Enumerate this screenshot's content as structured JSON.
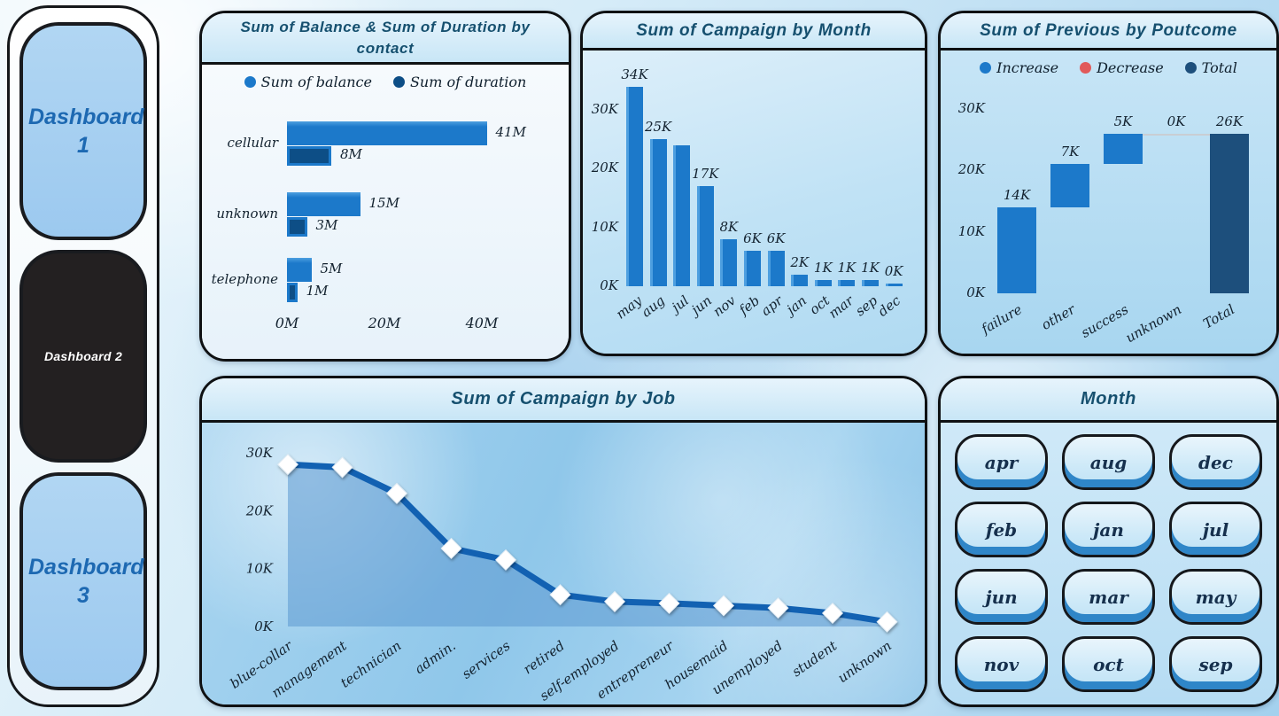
{
  "sidebar": {
    "items": [
      {
        "id": "dashboard-1",
        "label": "Dashboard 1",
        "style": "light"
      },
      {
        "id": "dashboard-2",
        "label": "Dashboard 2",
        "style": "dark"
      },
      {
        "id": "dashboard-3",
        "label": "Dashboard 3",
        "style": "light"
      }
    ]
  },
  "slicer": {
    "title": "Month",
    "options": [
      "apr",
      "aug",
      "dec",
      "feb",
      "jan",
      "jul",
      "jun",
      "mar",
      "may",
      "nov",
      "oct",
      "sep"
    ]
  },
  "theme": {
    "bar_blue": "#1c79ca",
    "bar_blue_highlight": "#4d9fe0",
    "bar_dark_blue": "#0d4e86",
    "total_navy": "#1d4f7c",
    "decrease_red": "#e15a5a",
    "line_blue": "#1261b2",
    "area_fill": "#5e9bd3",
    "title_color": "#16506f"
  },
  "chart_data": [
    {
      "id": "contact",
      "type": "bar",
      "orientation": "horizontal",
      "title": "Sum of Balance & Sum of Duration by contact",
      "categories": [
        "cellular",
        "unknown",
        "telephone"
      ],
      "series": [
        {
          "name": "Sum of balance",
          "color": "#1c79ca",
          "values": [
            41,
            15,
            5
          ],
          "labels": [
            "41M",
            "15M",
            "5M"
          ]
        },
        {
          "name": "Sum of duration",
          "color": "#0d4e86",
          "values": [
            8,
            3,
            1
          ],
          "labels": [
            "8M",
            "3M",
            "1M"
          ]
        }
      ],
      "xticks": [
        "0M",
        "20M",
        "40M"
      ],
      "xlim": [
        0,
        44
      ],
      "unit": "M",
      "legend_position": "top"
    },
    {
      "id": "campaign_month",
      "type": "bar",
      "title": "Sum of Campaign by Month",
      "categories": [
        "may",
        "aug",
        "jul",
        "jun",
        "nov",
        "feb",
        "apr",
        "jan",
        "oct",
        "mar",
        "sep",
        "dec"
      ],
      "values": [
        34,
        25,
        24,
        17,
        8,
        6,
        6,
        2,
        1,
        1,
        1,
        0.3
      ],
      "labels": [
        "34K",
        "25K",
        "",
        "17K",
        "8K",
        "6K",
        "6K",
        "2K",
        "1K",
        "1K",
        "1K",
        "0K"
      ],
      "yticks": [
        "0K",
        "10K",
        "20K",
        "30K"
      ],
      "ylim": [
        0,
        35
      ],
      "grid": false
    },
    {
      "id": "poutcome_waterfall",
      "type": "waterfall",
      "title": "Sum of Previous by Poutcome",
      "legend": [
        {
          "label": "Increase",
          "color": "#1c79ca"
        },
        {
          "label": "Decrease",
          "color": "#e15a5a"
        },
        {
          "label": "Total",
          "color": "#1d4f7c"
        }
      ],
      "categories": [
        "failure",
        "other",
        "success",
        "unknown",
        "Total"
      ],
      "steps": [
        {
          "category": "failure",
          "start": 0,
          "end": 14,
          "label": "14K",
          "kind": "increase"
        },
        {
          "category": "other",
          "start": 14,
          "end": 21,
          "label": "7K",
          "kind": "increase"
        },
        {
          "category": "success",
          "start": 21,
          "end": 26,
          "label": "5K",
          "kind": "increase"
        },
        {
          "category": "unknown",
          "start": 26,
          "end": 26,
          "label": "0K",
          "kind": "increase"
        },
        {
          "category": "Total",
          "start": 0,
          "end": 26,
          "label": "26K",
          "kind": "total"
        }
      ],
      "yticks": [
        "0K",
        "10K",
        "20K",
        "30K"
      ],
      "ylim": [
        0,
        30
      ],
      "legend_position": "top"
    },
    {
      "id": "campaign_job",
      "type": "area",
      "title": "Sum of Campaign by Job",
      "categories": [
        "blue-collar",
        "management",
        "technician",
        "admin.",
        "services",
        "retired",
        "self-employed",
        "entrepreneur",
        "housemaid",
        "unemployed",
        "student",
        "unknown"
      ],
      "values": [
        28,
        27.5,
        23,
        13.5,
        11.5,
        5.5,
        4.3,
        4,
        3.6,
        3.2,
        2.3,
        0.8
      ],
      "yticks": [
        "0K",
        "10K",
        "20K",
        "30K"
      ],
      "ylim": [
        0,
        30
      ],
      "marker": "diamond",
      "grid": false
    }
  ]
}
